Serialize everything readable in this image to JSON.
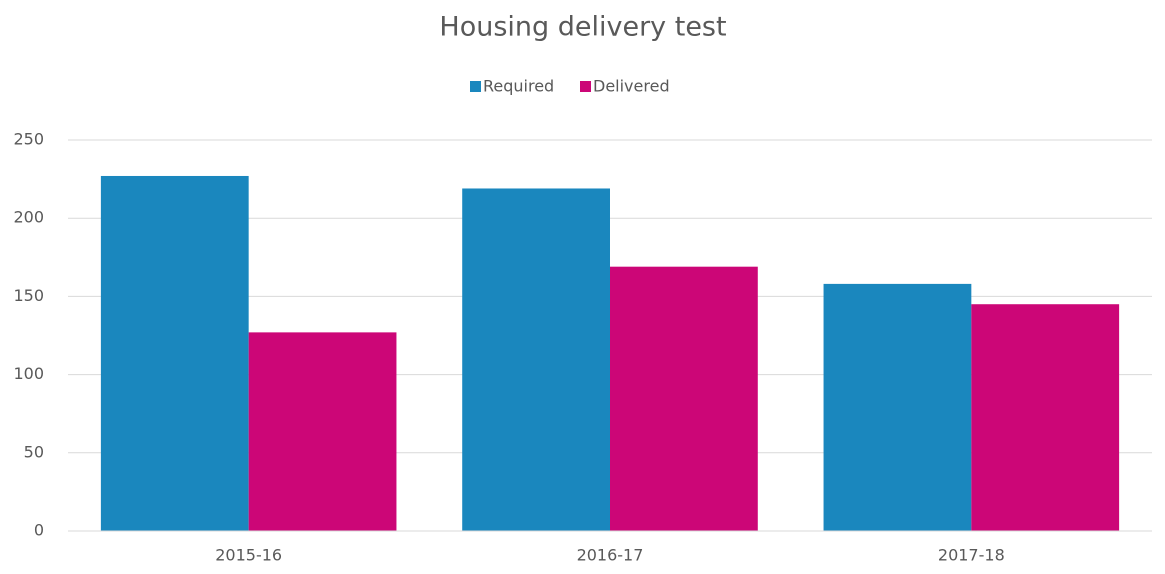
{
  "chart_data": {
    "type": "bar",
    "title": "Housing delivery test",
    "categories": [
      "2015-16",
      "2016-17",
      "2017-18"
    ],
    "series": [
      {
        "name": "Required",
        "color": "#1a87be",
        "values": [
          227,
          219,
          158
        ]
      },
      {
        "name": "Delivered",
        "color": "#cc0677",
        "values": [
          127,
          169,
          145
        ]
      }
    ],
    "ylim": [
      0,
      250
    ],
    "yticks": [
      0,
      50,
      100,
      150,
      200,
      250
    ],
    "grid": true,
    "legend": "top"
  }
}
